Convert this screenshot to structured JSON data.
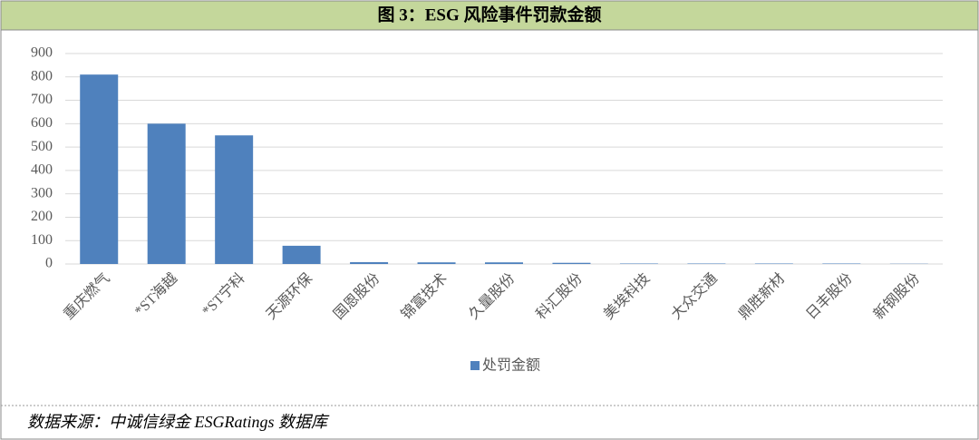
{
  "chart_data": {
    "type": "bar",
    "title": "图 3：ESG 风险事件罚款金额",
    "categories": [
      "重庆燃气",
      "*ST海越",
      "*ST宁科",
      "天源环保",
      "国恩股份",
      "锦富技术",
      "久量股份",
      "科汇股份",
      "美埃科技",
      "大众交通",
      "鼎胜新材",
      "日丰股份",
      "新钢股份"
    ],
    "series": [
      {
        "name": "处罚金额",
        "color": "#4f81bd",
        "values": [
          810,
          600,
          550,
          78,
          8,
          7,
          7,
          5,
          2,
          2,
          2,
          2,
          1
        ]
      }
    ],
    "ylim": [
      0,
      900
    ],
    "yticks": [
      0,
      100,
      200,
      300,
      400,
      500,
      600,
      700,
      800,
      900
    ],
    "grid": true,
    "legend": "bottom"
  },
  "source": "数据来源：中诚信绿金 ESGRatings 数据库"
}
